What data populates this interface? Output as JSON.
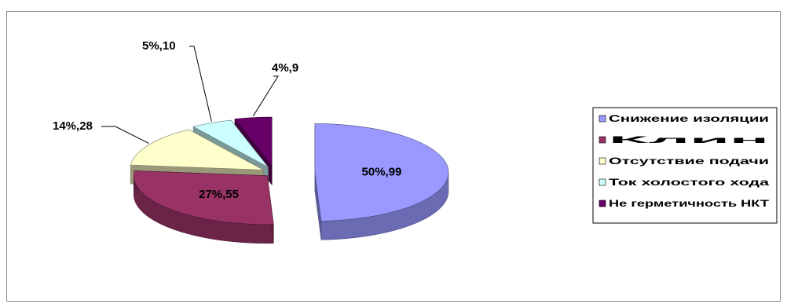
{
  "chart_data": {
    "type": "pie",
    "variant": "3d-exploded",
    "slices": [
      {
        "name": "Снижение изоляции",
        "percent": 50,
        "value": 99,
        "label": "50%,99",
        "color": "#9999ff"
      },
      {
        "name": "Клин",
        "percent": 27,
        "value": 55,
        "label": "27%,55",
        "color": "#993366"
      },
      {
        "name": "Отсутствие подачи",
        "percent": 14,
        "value": 28,
        "label": "14%,28",
        "color": "#ffffcc"
      },
      {
        "name": "Ток холостого хода",
        "percent": 5,
        "value": 10,
        "label": "5%,10",
        "color": "#ccffff"
      },
      {
        "name": "Не герметичность НКТ",
        "percent": 4,
        "value": 9,
        "label": "4%,9",
        "color": "#660066"
      }
    ],
    "legend_position": "right"
  }
}
